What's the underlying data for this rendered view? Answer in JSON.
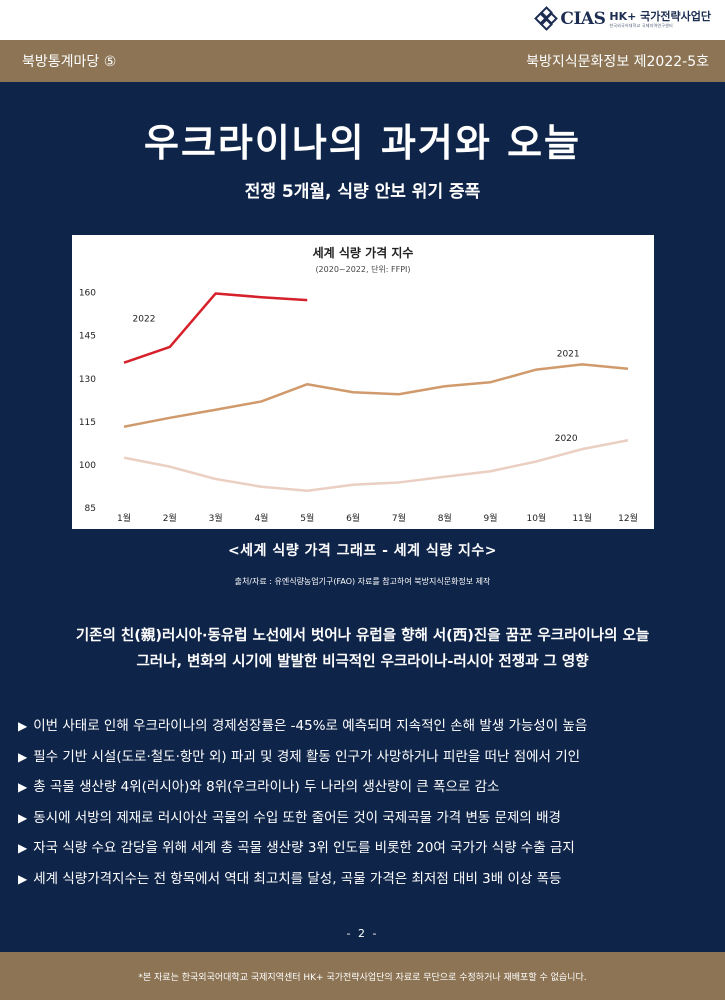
{
  "header": {
    "logo_name": "CIAS",
    "logo_title": "HK+ 국가전략사업단",
    "logo_sub": "한국외국어대학교 국제지역연구센터"
  },
  "top_band": {
    "left": "북방통계마당 ⑤",
    "right": "북방지식문화정보 제2022-5호"
  },
  "headline": "우크라이나의 과거와 오늘",
  "subhead": "전쟁 5개월, 식량 안보 위기 증폭",
  "chart_caption": "<세계 식량 가격 그래프 - 세계 식량 지수>",
  "chart_source": "출처/자료 : 유엔식량농업기구(FAO) 자료를 참고하여 북방지식문화정보 제작",
  "lead": [
    "기존의 친(親)러시아·동유럽 노선에서 벗어나 유럽을 향해 서(西)진을 꿈꾼 우크라이나의 오늘",
    "그러나, 변화의 시기에 발발한 비극적인 우크라이나-러시아 전쟁과 그 영향"
  ],
  "bullets": [
    "이번 사태로 인해 우크라이나의 경제성장률은 -45%로 예측되며 지속적인 손해 발생 가능성이 높음",
    "필수 기반 시설(도로·철도·항만 외) 파괴 및 경제 활동 인구가 사망하거나 피란을 떠난 점에서 기인",
    "총 곡물 생산량 4위(러시아)와 8위(우크라이나) 두 나라의 생산량이 큰 폭으로 감소",
    "동시에 서방의 제재로 러시아산 곡물의 수입 또한 줄어든 것이 국제곡물 가격 변동 문제의 배경",
    "자국 식량 수요 감당을 위해 세계 총 곡물 생산량 3위 인도를 비롯한 20여 국가가 식량 수출 금지",
    "세계 식량가격지수는 전 항목에서 역대 최고치를 달성, 곡물 가격은 최저점 대비 3배 이상 폭등"
  ],
  "bullet_marker": "▶",
  "page_number": "- 2 -",
  "footer_note": "*본 자료는 한국외국어대학교 국제지역센터 HK+ 국가전략사업단의 자료로 무단으로 수정하거나 재배포할 수 없습니다.",
  "colors": {
    "navy": "#0e2449",
    "tan": "#8c7454",
    "series_2022": "#d6202a",
    "series_2021": "#d09a6c",
    "series_2020": "#eacfc2"
  },
  "chart_data": {
    "type": "line",
    "title": "세계 식량 가격 지수",
    "subtitle": "(2020~2022, 단위: FFPI)",
    "categories": [
      "1월",
      "2월",
      "3월",
      "4월",
      "5월",
      "6월",
      "7월",
      "8월",
      "9월",
      "10월",
      "11월",
      "12월"
    ],
    "yticks": [
      85,
      100,
      115,
      130,
      145,
      160
    ],
    "ylim": [
      85,
      163
    ],
    "grid": false,
    "series": [
      {
        "name": "2022",
        "color": "#d6202a",
        "values": [
          135.6,
          141.1,
          159.7,
          158.4,
          157.4,
          null,
          null,
          null,
          null,
          null,
          null,
          null
        ]
      },
      {
        "name": "2021",
        "color": "#d09a6c",
        "values": [
          113.3,
          116.4,
          119.2,
          122.1,
          128.1,
          125.3,
          124.6,
          127.4,
          128.8,
          133.2,
          135.0,
          133.5
        ]
      },
      {
        "name": "2020",
        "color": "#eacfc2",
        "values": [
          102.5,
          99.4,
          95.1,
          92.4,
          91.0,
          93.1,
          93.9,
          95.9,
          97.8,
          101.2,
          105.5,
          108.6
        ]
      }
    ]
  }
}
